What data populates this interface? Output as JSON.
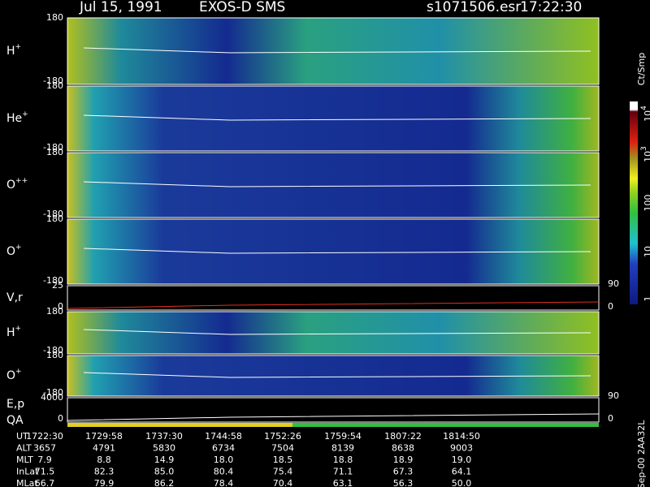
{
  "header": {
    "date": "Jul 15, 1991",
    "mission": "EXOS-D SMS",
    "file": "s1071506.esr",
    "time": "17:22:30"
  },
  "panels": [
    {
      "label": [
        {
          "text": "H",
          "sup": "+"
        }
      ],
      "ticks": [
        "180",
        "-180"
      ]
    },
    {
      "label": [
        {
          "text": "He",
          "sup": "+"
        }
      ],
      "ticks": [
        "180",
        "-180"
      ]
    },
    {
      "label": [
        {
          "text": "O",
          "sup": "++"
        }
      ],
      "ticks": [
        "180",
        "-180"
      ]
    },
    {
      "label": [
        {
          "text": "O",
          "sup": "+"
        }
      ],
      "ticks": [
        "180",
        "-180"
      ]
    },
    {
      "label": [
        {
          "text": "V,r"
        }
      ],
      "ticks": [
        "25",
        "0"
      ],
      "right_ticks": [
        "90",
        "0"
      ]
    },
    {
      "label": [
        {
          "text": "H",
          "sup": "+"
        }
      ],
      "ticks": [
        "180",
        "-180"
      ]
    },
    {
      "label": [
        {
          "text": "O",
          "sup": "+"
        }
      ],
      "ticks": [
        "180",
        "-180"
      ]
    },
    {
      "label": [
        {
          "text": "E,p"
        },
        {
          "text": "QA"
        }
      ],
      "ticks": [
        "4000",
        "0"
      ],
      "right_ticks": [
        "90",
        "0"
      ]
    }
  ],
  "colorbar": {
    "unit": "Ct/Smp",
    "ticks": [
      {
        "text": "10",
        "sup": "4"
      },
      {
        "text": "10",
        "sup": "3"
      },
      {
        "text": "100"
      },
      {
        "text": "10"
      },
      {
        "text": "1"
      }
    ]
  },
  "table": {
    "rows": [
      {
        "label": "UT",
        "values": [
          "1722:30",
          "1729:58",
          "1737:30",
          "1744:58",
          "1752:26",
          "1759:54",
          "1807:22",
          "1814:50"
        ]
      },
      {
        "label": "ALT",
        "values": [
          "3657",
          "4791",
          "5830",
          "6734",
          "7504",
          "8139",
          "8638",
          "9003"
        ]
      },
      {
        "label": "MLT",
        "values": [
          "7.9",
          "8.8",
          "14.9",
          "18.0",
          "18.5",
          "18.8",
          "18.9",
          "19.0"
        ]
      },
      {
        "label": "InLat",
        "values": [
          "71.5",
          "82.3",
          "85.0",
          "80.4",
          "75.4",
          "71.1",
          "67.3",
          "64.1"
        ]
      },
      {
        "label": "MLat",
        "values": [
          "66.7",
          "79.9",
          "86.2",
          "78.4",
          "70.4",
          "63.1",
          "56.3",
          "50.0"
        ]
      }
    ]
  },
  "footer": "Sep-00 2AA32L"
}
